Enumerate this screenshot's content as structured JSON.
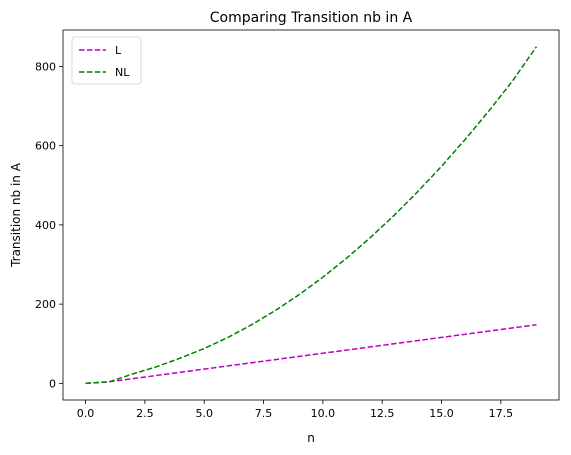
{
  "chart_data": {
    "type": "line",
    "title": "Comparing Transition nb in A",
    "xlabel": "n",
    "ylabel": "Transition nb in A",
    "xlim": [
      -0.95,
      19.95
    ],
    "ylim": [
      -42,
      892
    ],
    "xticks": [
      0.0,
      2.5,
      5.0,
      7.5,
      10.0,
      12.5,
      15.0,
      17.5
    ],
    "xtick_labels": [
      "0.0",
      "2.5",
      "5.0",
      "7.5",
      "10.0",
      "12.5",
      "15.0",
      "17.5"
    ],
    "yticks": [
      0,
      200,
      400,
      600,
      800
    ],
    "ytick_labels": [
      "0",
      "200",
      "400",
      "600",
      "800"
    ],
    "grid": false,
    "legend_position": "upper-left",
    "x": [
      0,
      1,
      2,
      3,
      4,
      5,
      6,
      7,
      8,
      9,
      10,
      11,
      12,
      13,
      14,
      15,
      16,
      17,
      18,
      19
    ],
    "series": [
      {
        "name": "L",
        "color": "#bf00bf",
        "style": "dashed",
        "values": [
          0,
          4,
          12,
          20,
          28,
          36,
          44,
          52,
          60,
          68,
          76,
          84,
          92,
          100,
          108,
          116,
          124,
          132,
          140,
          148
        ]
      },
      {
        "name": "NL",
        "color": "#008000",
        "style": "dashed",
        "values": [
          0,
          4,
          24,
          42,
          64,
          88,
          116,
          148,
          184,
          224,
          268,
          316,
          368,
          424,
          484,
          548,
          616,
          688,
          764,
          850
        ]
      }
    ]
  }
}
